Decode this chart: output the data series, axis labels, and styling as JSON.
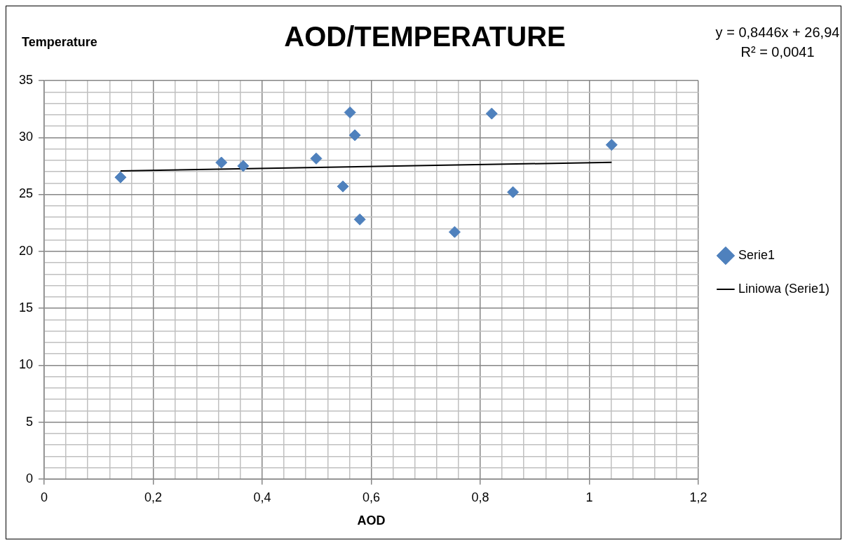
{
  "chart_data": {
    "type": "scatter",
    "title": "AOD/TEMPERATURE",
    "xlabel": "AOD",
    "ylabel": "Temperature",
    "annotations": [
      "y = 0,8446x + 26,94",
      "R² = 0,0041"
    ],
    "series": [
      {
        "name": "Serie1",
        "color": "#4f81bd",
        "marker": "diamond",
        "x": [
          0.14,
          0.325,
          0.365,
          0.499,
          0.548,
          0.561,
          0.57,
          0.579,
          0.753,
          0.821,
          0.86,
          1.041
        ],
        "values": [
          26.5,
          27.8,
          27.5,
          28.15,
          25.7,
          32.2,
          30.2,
          22.8,
          21.7,
          32.1,
          25.2,
          29.35
        ]
      },
      {
        "name": "Liniowa (Serie1)",
        "type": "line",
        "color": "#000000",
        "marker": "none",
        "line_style": "solid",
        "x": [
          0.14,
          1.041
        ],
        "values": [
          27.06,
          27.82
        ]
      }
    ],
    "xlim": [
      0,
      1.2
    ],
    "ylim": [
      0,
      35
    ],
    "xticks": [
      0,
      {
        "value": 0.04,
        "label": null
      },
      {
        "value": 0.08,
        "label": null
      },
      {
        "value": 0.12,
        "label": null
      },
      {
        "value": 0.16,
        "label": null
      },
      {
        "value": 0.2,
        "label": "0,2"
      },
      {
        "value": 0.24,
        "label": null
      },
      {
        "value": 0.28,
        "label": null
      },
      {
        "value": 0.32,
        "label": null
      },
      {
        "value": 0.36,
        "label": null
      },
      {
        "value": 0.4,
        "label": "0,4"
      },
      {
        "value": 0.44,
        "label": null
      },
      {
        "value": 0.48,
        "label": null
      },
      {
        "value": 0.52,
        "label": null
      },
      {
        "value": 0.56,
        "label": null
      },
      {
        "value": 0.6,
        "label": "0,6"
      },
      {
        "value": 0.64,
        "label": null
      },
      {
        "value": 0.68,
        "label": null
      },
      {
        "value": 0.72,
        "label": null
      },
      {
        "value": 0.76,
        "label": null
      },
      {
        "value": 0.8,
        "label": "0,8"
      },
      {
        "value": 0.84,
        "label": null
      },
      {
        "value": 0.88,
        "label": null
      },
      {
        "value": 0.92,
        "label": null
      },
      {
        "value": 0.96,
        "label": null
      },
      1,
      {
        "value": 1.04,
        "label": null
      },
      {
        "value": 1.08,
        "label": null
      },
      {
        "value": 1.12,
        "label": null
      },
      {
        "value": 1.16,
        "label": null
      },
      {
        "value": 1.2,
        "label": "1,2"
      }
    ],
    "yticks": [
      0,
      {
        "value": 1,
        "label": null
      },
      {
        "value": 2,
        "label": null
      },
      {
        "value": 3,
        "label": null
      },
      {
        "value": 4,
        "label": null
      },
      5,
      {
        "value": 6,
        "label": null
      },
      {
        "value": 7,
        "label": null
      },
      {
        "value": 8,
        "label": null
      },
      {
        "value": 9,
        "label": null
      },
      10,
      {
        "value": 11,
        "label": null
      },
      {
        "value": 12,
        "label": null
      },
      {
        "value": 13,
        "label": null
      },
      {
        "value": 14,
        "label": null
      },
      15,
      {
        "value": 16,
        "label": null
      },
      {
        "value": 17,
        "label": null
      },
      {
        "value": 18,
        "label": null
      },
      {
        "value": 19,
        "label": null
      },
      20,
      {
        "value": 21,
        "label": null
      },
      {
        "value": 22,
        "label": null
      },
      {
        "value": 23,
        "label": null
      },
      {
        "value": 24,
        "label": null
      },
      25,
      {
        "value": 26,
        "label": null
      },
      {
        "value": 27,
        "label": null
      },
      {
        "value": 28,
        "label": null
      },
      {
        "value": 29,
        "label": null
      },
      30,
      {
        "value": 31,
        "label": null
      },
      {
        "value": 32,
        "label": null
      },
      {
        "value": 33,
        "label": null
      },
      {
        "value": 34,
        "label": null
      },
      35
    ],
    "grid": true,
    "legend": "right"
  }
}
